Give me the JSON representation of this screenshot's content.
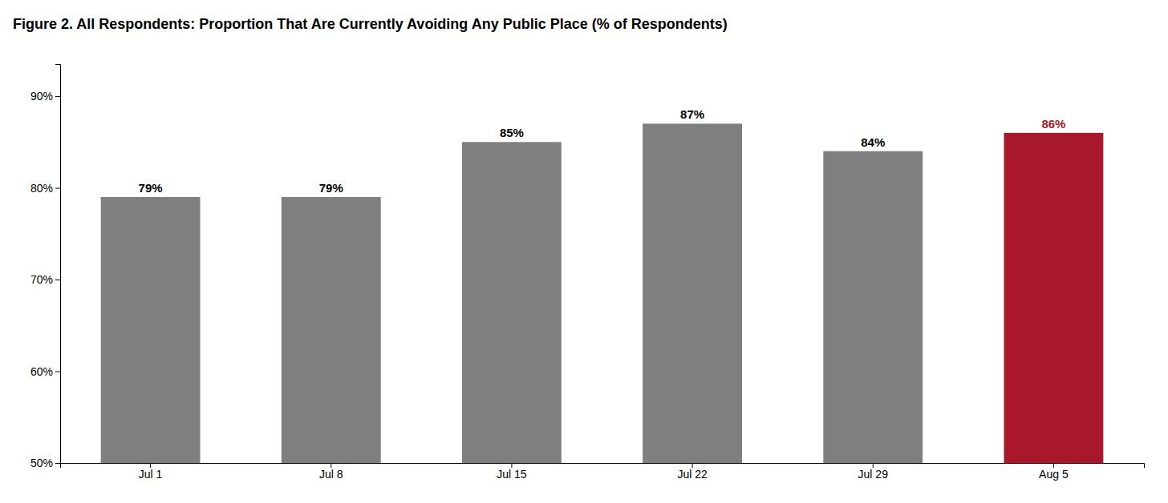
{
  "chart_data": {
    "type": "bar",
    "title": "Figure 2. All Respondents: Proportion That Are Currently Avoiding Any Public Place (% of Respondents)",
    "categories": [
      "Jul 1",
      "Jul 8",
      "Jul 15",
      "Jul 22",
      "Jul 29",
      "Aug 5"
    ],
    "values": [
      0.79,
      0.79,
      0.85,
      0.87,
      0.84,
      0.86
    ],
    "value_labels": [
      "79%",
      "79%",
      "85%",
      "87%",
      "84%",
      "86%"
    ],
    "colors": [
      "#7f7f7f",
      "#7f7f7f",
      "#7f7f7f",
      "#7f7f7f",
      "#7f7f7f",
      "#A8172A"
    ],
    "ylim": [
      0.5,
      0.935
    ],
    "yticks": [
      {
        "value": 0.5,
        "label": "50%"
      },
      {
        "value": 0.6,
        "label": "60%"
      },
      {
        "value": 0.7,
        "label": "70%"
      },
      {
        "value": 0.8,
        "label": "80%"
      },
      {
        "value": 0.9,
        "label": "90%"
      }
    ],
    "data_labels": true,
    "grid": false
  }
}
